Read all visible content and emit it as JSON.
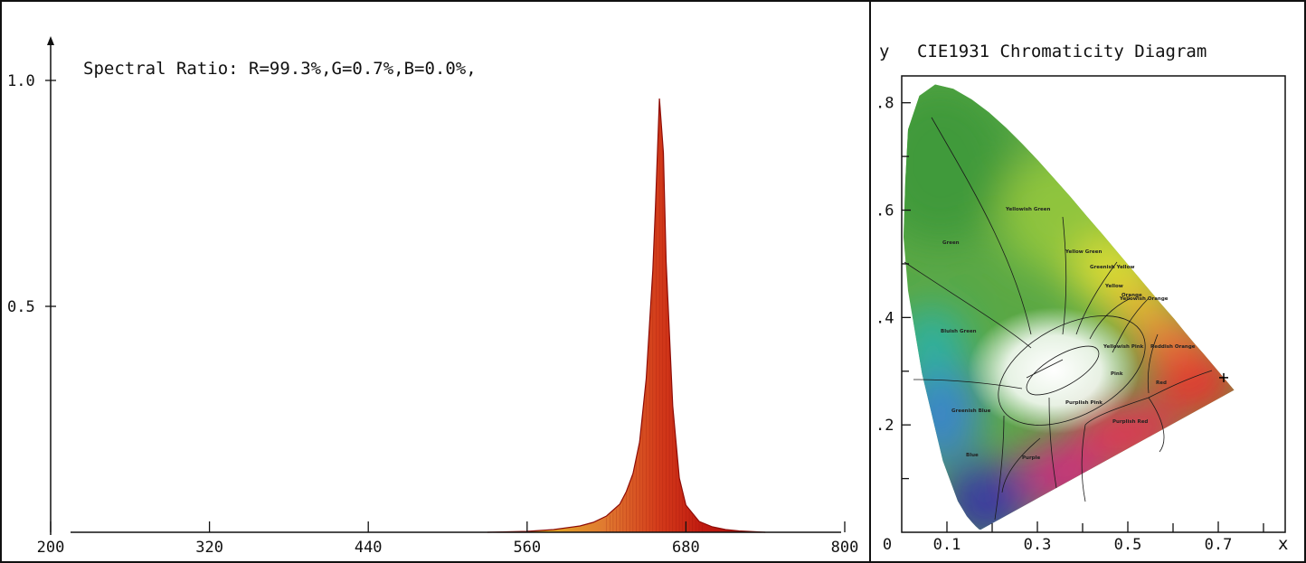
{
  "chart_data": [
    {
      "type": "area",
      "title": "Spectral Ratio:  R=99.3%,G=0.7%,B=0.0%,",
      "xlabel": "",
      "ylabel": "",
      "x_ticks": [
        "200",
        "320",
        "440",
        "560",
        "680",
        "800"
      ],
      "y_ticks": [
        "1.0",
        "0.5"
      ],
      "xlim": [
        200,
        800
      ],
      "ylim": [
        0,
        1.0
      ],
      "grid": false,
      "series": [
        {
          "x": [
            530,
            560,
            580,
            600,
            610,
            620,
            630,
            635,
            640,
            645,
            650,
            655,
            657,
            660,
            663,
            665,
            670,
            675,
            680,
            690,
            700,
            710,
            720,
            740
          ],
          "values": [
            0.0,
            0.002,
            0.006,
            0.014,
            0.022,
            0.036,
            0.062,
            0.09,
            0.13,
            0.2,
            0.34,
            0.58,
            0.72,
            0.96,
            0.84,
            0.6,
            0.28,
            0.12,
            0.06,
            0.024,
            0.012,
            0.006,
            0.003,
            0.0
          ]
        }
      ]
    },
    {
      "type": "scatter",
      "title": "CIE1931 Chromaticity Diagram",
      "xlabel": "x",
      "ylabel": "y",
      "x_ticks": [
        "0",
        "0.1",
        "0.3",
        "0.5",
        "0.7"
      ],
      "y_ticks": [
        ".8",
        ".6",
        ".4",
        ".2"
      ],
      "xlim": [
        0,
        0.8
      ],
      "ylim": [
        0,
        0.85
      ],
      "grid": false,
      "series": [
        {
          "x": [
            0.712
          ],
          "values": [
            0.288
          ]
        }
      ],
      "regions": [
        "Yellowish Green",
        "Green",
        "Yellow Green",
        "Greenish Yellow",
        "Yellow",
        "Yellowish Orange",
        "Orange",
        "Bluish Green",
        "Yellowish Pink",
        "Reddish Orange",
        "Pink",
        "Red",
        "Greenish Blue",
        "Purplish Pink",
        "Purplish Red",
        "Blue",
        "Purple"
      ]
    }
  ]
}
